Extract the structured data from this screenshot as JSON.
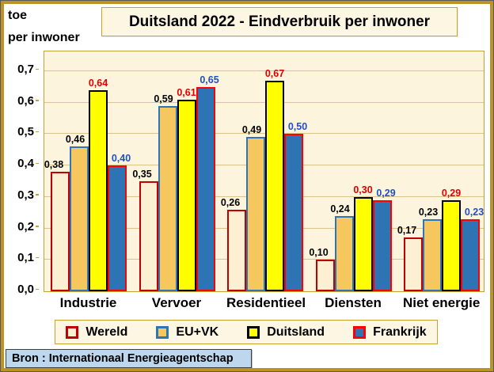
{
  "header": {
    "title": "Duitsland 2022 - Eindverbruik per inwoner",
    "unit_line1": "toe",
    "unit_line2": "per inwoner"
  },
  "chart_data": {
    "type": "bar",
    "title": "Duitsland 2022 - Eindverbruik per inwoner",
    "ylabel": "toe per inwoner",
    "ylim": [
      0,
      0.7
    ],
    "ytick_step": 0.1,
    "ytick_labels": [
      "0,0",
      "0,1",
      "0,2",
      "0,3",
      "0,4",
      "0,5",
      "0,6",
      "0,7"
    ],
    "grid": true,
    "legend_position": "bottom",
    "categories": [
      "Industrie",
      "Vervoer",
      "Residentieel",
      "Diensten",
      "Niet energie"
    ],
    "series": [
      {
        "name": "Wereld",
        "values": [
          0.38,
          0.35,
          0.26,
          0.1,
          0.17
        ],
        "labels": [
          "0,38",
          "0,35",
          "0,26",
          "0,10",
          "0,17"
        ],
        "fill": "#FCEFD2",
        "border": "#C00000",
        "label_color": "#000000"
      },
      {
        "name": "EU+VK",
        "values": [
          0.46,
          0.59,
          0.49,
          0.24,
          0.23
        ],
        "labels": [
          "0,46",
          "0,59",
          "0,49",
          "0,24",
          "0,23"
        ],
        "fill": "#F6C75F",
        "border": "#2E75B6",
        "label_color": "#000000"
      },
      {
        "name": "Duitsland",
        "values": [
          0.64,
          0.61,
          0.67,
          0.3,
          0.29
        ],
        "labels": [
          "0,64",
          "0,61",
          "0,67",
          "0,30",
          "0,29"
        ],
        "fill": "#FFFF00",
        "border": "#000000",
        "label_color": "#E10000"
      },
      {
        "name": "Frankrijk",
        "values": [
          0.4,
          0.65,
          0.5,
          0.29,
          0.23
        ],
        "labels": [
          "0,40",
          "0,65",
          "0,50",
          "0,29",
          "0,23"
        ],
        "fill": "#2E73B4",
        "border": "#FF0000",
        "label_color": "#2050C8"
      }
    ]
  },
  "footer": {
    "source": "Bron : Internationaal Energieagentschap"
  },
  "colors": {
    "page_border_gold": "#BE9226",
    "plot_background": "#FCF4DC",
    "gridline": "#DCC488",
    "panel_background": "#FDF6E3",
    "panel_border": "#C9A227",
    "footer_background": "#BDD7EE"
  }
}
